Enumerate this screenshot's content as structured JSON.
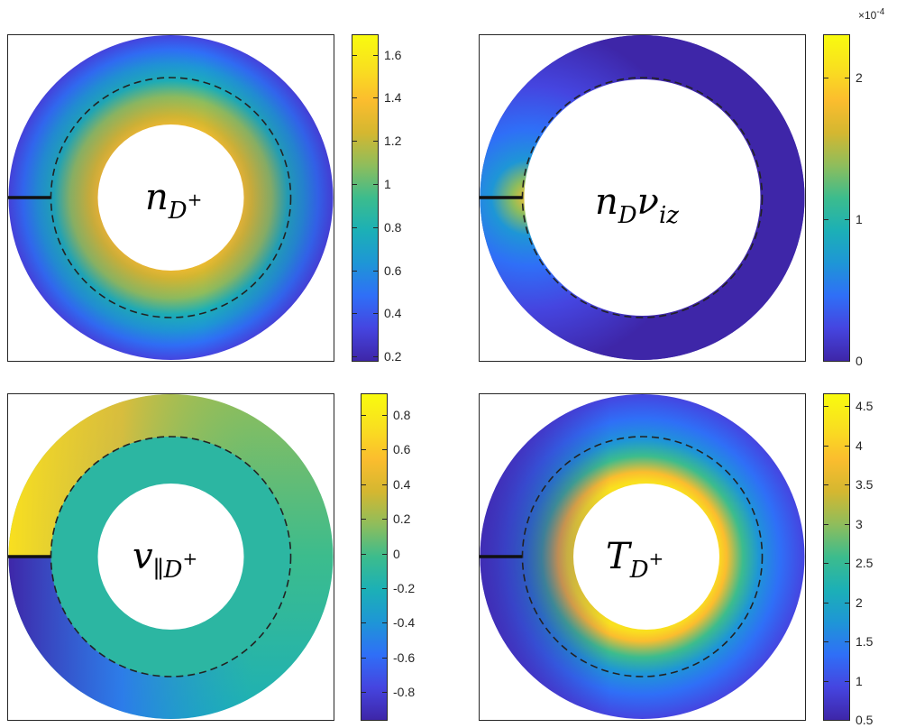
{
  "chart_data": [
    {
      "type": "heatmap",
      "label_base": "n",
      "label_sub": "D",
      "label_sup": "+",
      "colorbar": {
        "range": [
          0.18,
          1.69
        ],
        "ticks": [
          0.2,
          0.4,
          0.6,
          0.8,
          1,
          1.2,
          1.4,
          1.6
        ],
        "tick_labels": [
          "0.2",
          "0.4",
          "0.6",
          "0.8",
          "1",
          "1.2",
          "1.4",
          "1.6"
        ],
        "exponent": ""
      }
    },
    {
      "type": "heatmap",
      "label_base": "n",
      "label_sub": "D",
      "label_mid": "ν",
      "label_sub2": "iz",
      "colorbar": {
        "range": [
          0,
          2.3
        ],
        "ticks": [
          0,
          1,
          2
        ],
        "tick_labels": [
          "0",
          "1",
          "2"
        ],
        "exponent": "×10",
        "exponent_power": "-4"
      }
    },
    {
      "type": "heatmap",
      "label_base": "v",
      "label_sub": "∥D",
      "label_sup": "+",
      "colorbar": {
        "range": [
          -0.96,
          0.92
        ],
        "ticks": [
          -0.8,
          -0.6,
          -0.4,
          -0.2,
          0,
          0.2,
          0.4,
          0.6,
          0.8
        ],
        "tick_labels": [
          "-0.8",
          "-0.6",
          "-0.4",
          "-0.2",
          "0",
          "0.2",
          "0.4",
          "0.6",
          "0.8"
        ],
        "exponent": ""
      }
    },
    {
      "type": "heatmap",
      "label_base": "T",
      "label_sub": "D",
      "label_sup": "+",
      "colorbar": {
        "range": [
          0.5,
          4.65
        ],
        "ticks": [
          0.5,
          1,
          1.5,
          2,
          2.5,
          3,
          3.5,
          4,
          4.5
        ],
        "tick_labels": [
          "0.5",
          "1",
          "1.5",
          "2",
          "2.5",
          "3",
          "3.5",
          "4",
          "4.5"
        ],
        "exponent": ""
      }
    }
  ],
  "colormap": [
    "#3e26a8",
    "#4545e0",
    "#2f6ff7",
    "#1e96d6",
    "#1cb0b6",
    "#3cbc8d",
    "#8ebd5c",
    "#d4b730",
    "#fbbd2e",
    "#f9e01f",
    "#f9fb0e"
  ]
}
